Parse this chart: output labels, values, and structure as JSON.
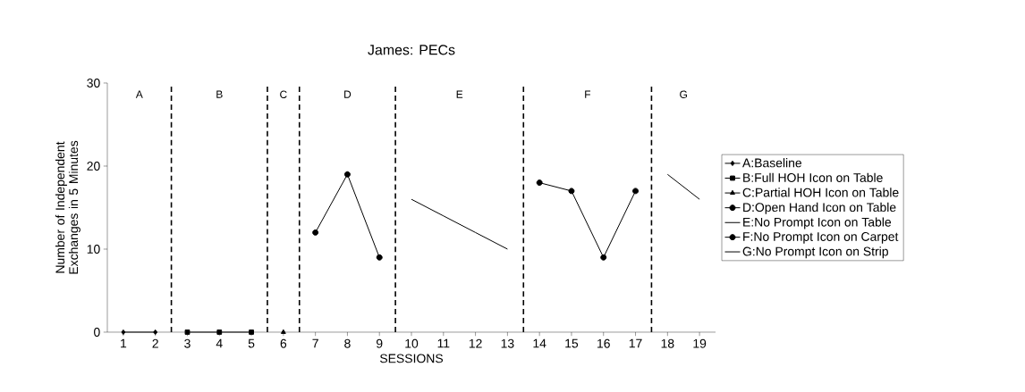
{
  "chart_data": {
    "type": "line",
    "title": "James: PECs",
    "xlabel": "SESSIONS",
    "ylabel": "Number of Independent Exchanges in 5 Minutes",
    "xlim": [
      0.5,
      19.5
    ],
    "xticks": [
      1,
      2,
      3,
      4,
      5,
      6,
      7,
      8,
      9,
      10,
      11,
      12,
      13,
      14,
      15,
      16,
      17,
      18,
      19
    ],
    "ylim": [
      0,
      30
    ],
    "yticks": [
      0,
      10,
      20,
      30
    ],
    "grid": false,
    "legend": "right",
    "series": [
      {
        "name": "A:Baseline",
        "color": "#000000",
        "marker": "diamond",
        "x": [
          1,
          2
        ],
        "values": [
          0,
          0
        ]
      },
      {
        "name": "B:Full HOH Icon on Table",
        "color": "#000000",
        "marker": "square",
        "x": [
          3,
          4,
          5
        ],
        "values": [
          0,
          0,
          0
        ]
      },
      {
        "name": "C:Partial HOH Icon on Table",
        "color": "#000000",
        "marker": "triangle",
        "x": [
          6
        ],
        "values": [
          0
        ]
      },
      {
        "name": "D:Open Hand Icon on Table",
        "color": "#000000",
        "marker": "circle",
        "x": [
          7,
          8,
          9
        ],
        "values": [
          12,
          19,
          9
        ]
      },
      {
        "name": "E:No Prompt Icon on Table",
        "color": "#000000",
        "marker": "none",
        "x": [
          10,
          11,
          12,
          13
        ],
        "values": [
          16,
          14,
          12,
          10
        ]
      },
      {
        "name": "F:No Prompt Icon on Carpet",
        "color": "#000000",
        "marker": "circle",
        "x": [
          14,
          15,
          16,
          17
        ],
        "values": [
          18,
          17,
          9,
          17
        ]
      },
      {
        "name": "G:No Prompt Icon on Strip",
        "color": "#000000",
        "marker": "none",
        "x": [
          18,
          19
        ],
        "values": [
          19,
          16
        ]
      }
    ],
    "ref_lines": [
      {
        "axis": "x",
        "value": 2.5,
        "color": "#000000",
        "line_style": "dashed"
      },
      {
        "axis": "x",
        "value": 5.5,
        "color": "#000000",
        "line_style": "dashed"
      },
      {
        "axis": "x",
        "value": 6.5,
        "color": "#000000",
        "line_style": "dashed"
      },
      {
        "axis": "x",
        "value": 9.5,
        "color": "#000000",
        "line_style": "dashed"
      },
      {
        "axis": "x",
        "value": 13.5,
        "color": "#000000",
        "line_style": "dashed"
      },
      {
        "axis": "x",
        "value": 17.5,
        "color": "#000000",
        "line_style": "dashed"
      }
    ],
    "annotations": [
      "A",
      "B",
      "C",
      "D",
      "E",
      "F",
      "G"
    ]
  }
}
